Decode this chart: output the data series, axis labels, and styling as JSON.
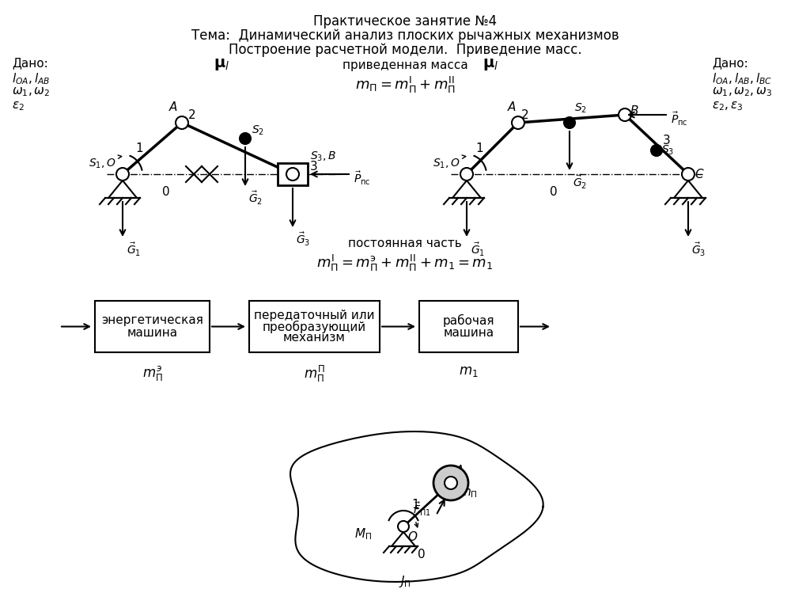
{
  "title_line1": "Практическое занятие №4",
  "title_line2": "Тема:  Динамический анализ плоских рычажных механизмов",
  "title_line3": "Построение расчетной модели.  Приведение масс.",
  "bg_color": "#ffffff",
  "text_color": "#000000",
  "left_dado": [
    "Дано:",
    "$l_{OA}, l_{AB}$",
    "$\\omega_1, \\omega_2$",
    "$\\varepsilon_2$"
  ],
  "right_dado": [
    "Дано:",
    "$l_{OA}, l_{AB}, l_{BC}$",
    "$\\omega_1, \\omega_2, \\omega_3$",
    "$\\varepsilon_2, \\varepsilon_3$"
  ],
  "center_text1": "приведенная масса",
  "center_formula1": "$m_{\\Pi} = m_{\\Pi}^{\\mathrm{I}} + m_{\\Pi}^{\\mathrm{II}}$",
  "center_text2": "постоянная часть",
  "center_formula2": "$m_{\\Pi}^{\\mathrm{I}} = m_{\\Pi}^{э} + m_{\\Pi}^{\\mathrm{II}} + m_1 = m_1$",
  "box1_text": [
    "энергетическая",
    "машина"
  ],
  "box2_text": [
    "передаточный или",
    "преобразующий",
    "механизм"
  ],
  "box3_text": [
    "рабочая",
    "машина"
  ],
  "box1_label": "$m_{\\Pi}^{э}$",
  "box2_label": "$m_{\\Pi}^{\\Pi}$",
  "box3_label": "$m_1$"
}
